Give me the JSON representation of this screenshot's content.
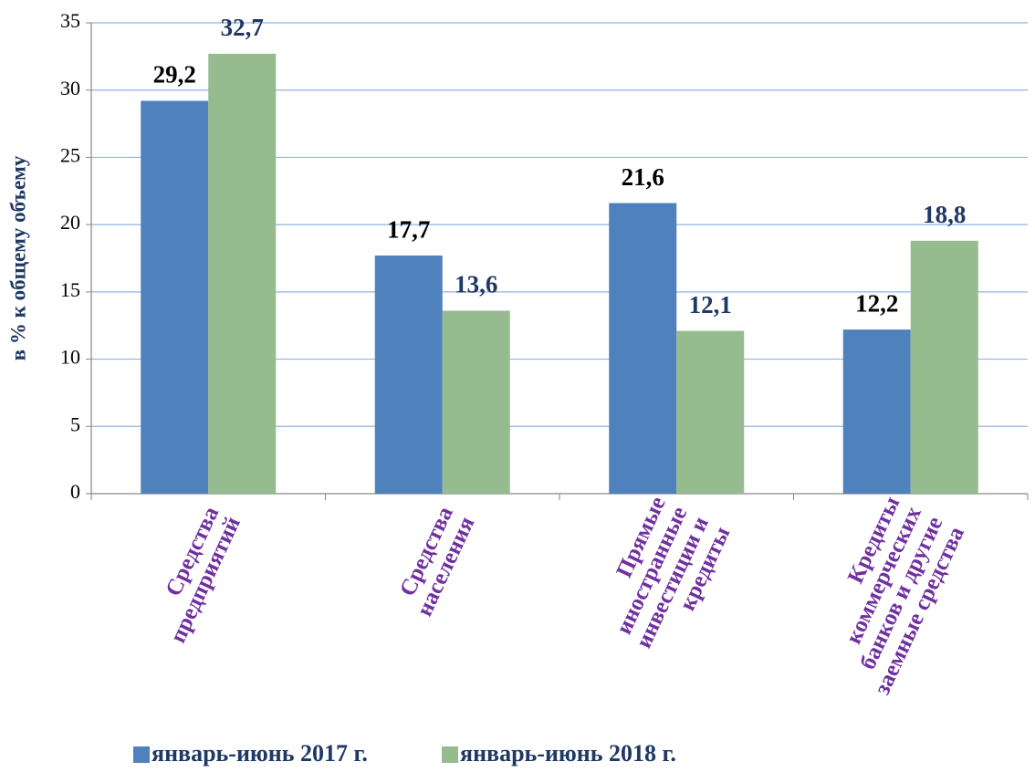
{
  "chart_data": {
    "type": "bar",
    "y_axis_label": "в  % к общему объему",
    "categories": [
      "Средства\nпредприятий",
      "Средства\nнаселения",
      "Прямые\nиностранные\nинвестиции и\nкредиты",
      "Кредиты\nкоммерческих\nбанков и другие\nзаемные средства"
    ],
    "series": [
      {
        "name": "январь-июнь 2017 г.",
        "color": "#4f81bd",
        "label_color": "#000000",
        "values": [
          29.2,
          17.7,
          21.6,
          12.2
        ],
        "value_labels": [
          "29,2",
          "17,7",
          "21,6",
          "12,2"
        ]
      },
      {
        "name": "январь-июнь 2018 г.",
        "color": "#95bb8f",
        "label_color": "#1f3864",
        "values": [
          32.7,
          13.6,
          12.1,
          18.8
        ],
        "value_labels": [
          "32,7",
          "13,6",
          "12,1",
          "18,8"
        ]
      }
    ],
    "ylim": [
      0,
      35
    ],
    "yticks": [
      0,
      5,
      10,
      15,
      20,
      25,
      30,
      35
    ],
    "grid": true,
    "legend": "bottom"
  }
}
